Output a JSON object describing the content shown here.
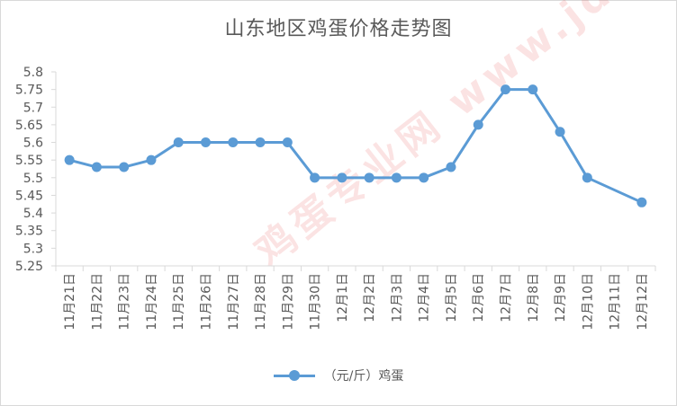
{
  "chart_data": {
    "type": "line",
    "title": "山东地区鸡蛋价格走势图",
    "categories": [
      "11月21日",
      "11月22日",
      "11月23日",
      "11月24日",
      "11月25日",
      "11月26日",
      "11月27日",
      "11月28日",
      "11月29日",
      "11月30日",
      "12月1日",
      "12月2日",
      "12月3日",
      "12月4日",
      "12月5日",
      "12月6日",
      "12月7日",
      "12月8日",
      "12月9日",
      "12月10日",
      "12月11日",
      "12月12日"
    ],
    "series": [
      {
        "name": "（元/斤）鸡蛋",
        "values": [
          5.55,
          5.53,
          5.53,
          5.55,
          5.6,
          5.6,
          5.6,
          5.6,
          5.6,
          5.5,
          5.5,
          5.5,
          5.5,
          5.5,
          5.53,
          5.65,
          5.75,
          5.75,
          5.63,
          5.5,
          null,
          5.43
        ],
        "color": "#5b9bd5"
      }
    ],
    "yticks": [
      "5.25",
      "5.3",
      "5.35",
      "5.4",
      "5.45",
      "5.5",
      "5.55",
      "5.6",
      "5.65",
      "5.7",
      "5.75",
      "5.8"
    ],
    "ylim": [
      5.25,
      5.8
    ],
    "grid": false,
    "legend": "bottom"
  },
  "watermark": "鸡蛋专业网 www.jdzyw.com"
}
